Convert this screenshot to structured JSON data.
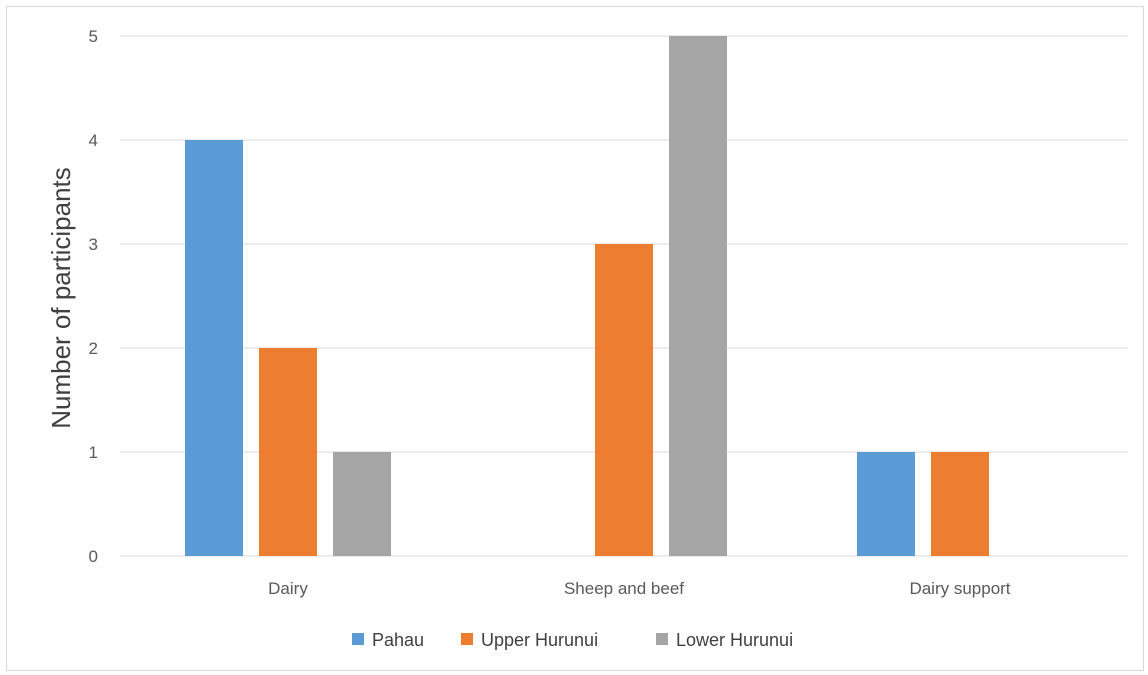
{
  "chart_data": {
    "type": "bar",
    "title": "",
    "xlabel": "",
    "ylabel": "Number of participants",
    "categories": [
      "Dairy",
      "Sheep and beef",
      "Dairy support"
    ],
    "series": [
      {
        "name": "Pahau",
        "color": "#5b9bd5",
        "values": [
          4,
          0,
          1
        ]
      },
      {
        "name": "Upper Hurunui",
        "color": "#ed7d31",
        "values": [
          2,
          3,
          1
        ]
      },
      {
        "name": "Lower Hurunui",
        "color": "#a5a5a5",
        "values": [
          1,
          5,
          0
        ]
      }
    ],
    "ylim": [
      0,
      5
    ],
    "yticks": [
      "0",
      "1",
      "2",
      "3",
      "4",
      "5"
    ],
    "grid": true,
    "legend_position": "bottom"
  }
}
